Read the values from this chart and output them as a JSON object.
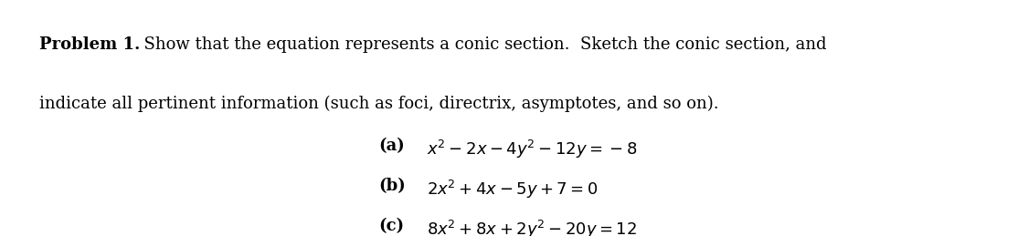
{
  "background_color": "#ffffff",
  "problem_label": "Problem 1.",
  "intro_text_line1": "  Show that the equation represents a conic section.  Sketch the conic section, and",
  "intro_text_line2": "indicate all pertinent information (such as foci, directrix, asymptotes, and so on).",
  "eq_a_label": "(a)",
  "eq_a_math": "$x^2 - 2x - 4y^2 - 12y = -8$",
  "eq_b_label": "(b)",
  "eq_b_math": "$2x^2 + 4x - 5y + 7 = 0$",
  "eq_c_label": "(c)",
  "eq_c_math": "$8x^2 + 8x + 2y^2 - 20y = 12$",
  "text_color": "#000000",
  "fontsize_body": 13.0,
  "fontsize_eq": 13.0,
  "fig_width": 11.25,
  "fig_height": 2.59,
  "dpi": 100
}
